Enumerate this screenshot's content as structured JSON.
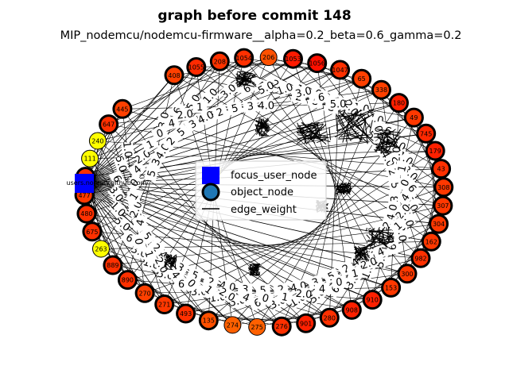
{
  "chart_data": {
    "type": "network",
    "title": "graph before commit 148",
    "subtitle": "MIP_nodemcu/nodemcu-firmware__alpha=0.2_beta=0.6_gamma=0.2",
    "legend": {
      "placement": "center",
      "entries": [
        {
          "label": "focus_user_node",
          "marker": "blue-square"
        },
        {
          "label": "object_node",
          "marker": "steelblue-circle"
        },
        {
          "label": "edge_weight",
          "marker": "black-line"
        }
      ]
    },
    "focus_node": {
      "label": "users.noreply.github.com",
      "color": "#0000ff"
    },
    "object_nodes": [
      {
        "label": "408",
        "color": "#ff4000",
        "bold": true
      },
      {
        "label": "1055",
        "color": "#ff2a00",
        "bold": true
      },
      {
        "label": "208",
        "color": "#ff3300",
        "bold": true
      },
      {
        "label": "1054",
        "color": "#ff3000",
        "bold": true
      },
      {
        "label": "206",
        "color": "#ff5000",
        "bold": false
      },
      {
        "label": "1053",
        "color": "#ff1a00",
        "bold": true
      },
      {
        "label": "1056",
        "color": "#ff1000",
        "bold": true
      },
      {
        "label": "1047",
        "color": "#ff3000",
        "bold": true
      },
      {
        "label": "65",
        "color": "#ff4000",
        "bold": true
      },
      {
        "label": "338",
        "color": "#ff4000",
        "bold": true
      },
      {
        "label": "180",
        "color": "#ff2000",
        "bold": true
      },
      {
        "label": "49",
        "color": "#ff3800",
        "bold": true
      },
      {
        "label": "745",
        "color": "#ff2800",
        "bold": true
      },
      {
        "label": "179",
        "color": "#ff2000",
        "bold": true
      },
      {
        "label": "43",
        "color": "#ff3000",
        "bold": true
      },
      {
        "label": "308",
        "color": "#ff3800",
        "bold": true
      },
      {
        "label": "307",
        "color": "#ff3800",
        "bold": true
      },
      {
        "label": "304",
        "color": "#ff3800",
        "bold": true
      },
      {
        "label": "162",
        "color": "#ff3800",
        "bold": true
      },
      {
        "label": "982",
        "color": "#ff3000",
        "bold": true
      },
      {
        "label": "300",
        "color": "#ff3800",
        "bold": true
      },
      {
        "label": "153",
        "color": "#ff3800",
        "bold": true
      },
      {
        "label": "910",
        "color": "#ff2000",
        "bold": true
      },
      {
        "label": "908",
        "color": "#ff2000",
        "bold": true
      },
      {
        "label": "280",
        "color": "#ff3000",
        "bold": true
      },
      {
        "label": "901",
        "color": "#ff2000",
        "bold": true
      },
      {
        "label": "276",
        "color": "#ff3000",
        "bold": true
      },
      {
        "label": "275",
        "color": "#ff6000",
        "bold": false
      },
      {
        "label": "274",
        "color": "#ff6000",
        "bold": false
      },
      {
        "label": "135",
        "color": "#ff5000",
        "bold": true
      },
      {
        "label": "493",
        "color": "#ff3000",
        "bold": true
      },
      {
        "label": "271",
        "color": "#ff3800",
        "bold": true
      },
      {
        "label": "270",
        "color": "#ff4000",
        "bold": true
      },
      {
        "label": "890",
        "color": "#ff3000",
        "bold": true
      },
      {
        "label": "889",
        "color": "#ff3000",
        "bold": true
      },
      {
        "label": "263",
        "color": "#ffff00",
        "bold": false
      },
      {
        "label": "675",
        "color": "#ff3000",
        "bold": true
      },
      {
        "label": "480",
        "color": "#ff3000",
        "bold": true
      },
      {
        "label": "477",
        "color": "#ff3800",
        "bold": true
      },
      {
        "label": "476",
        "color": "#ff3000",
        "bold": true
      },
      {
        "label": "111",
        "color": "#ffff00",
        "bold": false
      },
      {
        "label": "240",
        "color": "#ffff00",
        "bold": false
      },
      {
        "label": "647",
        "color": "#ff3000",
        "bold": true
      },
      {
        "label": "445",
        "color": "#ff4000",
        "bold": true
      }
    ],
    "edge_weight_labels": [
      "0",
      "2",
      "1.0",
      "4",
      "5",
      "3.0",
      "2.0",
      "3",
      "6",
      "1",
      "4.0",
      "5.0"
    ]
  }
}
